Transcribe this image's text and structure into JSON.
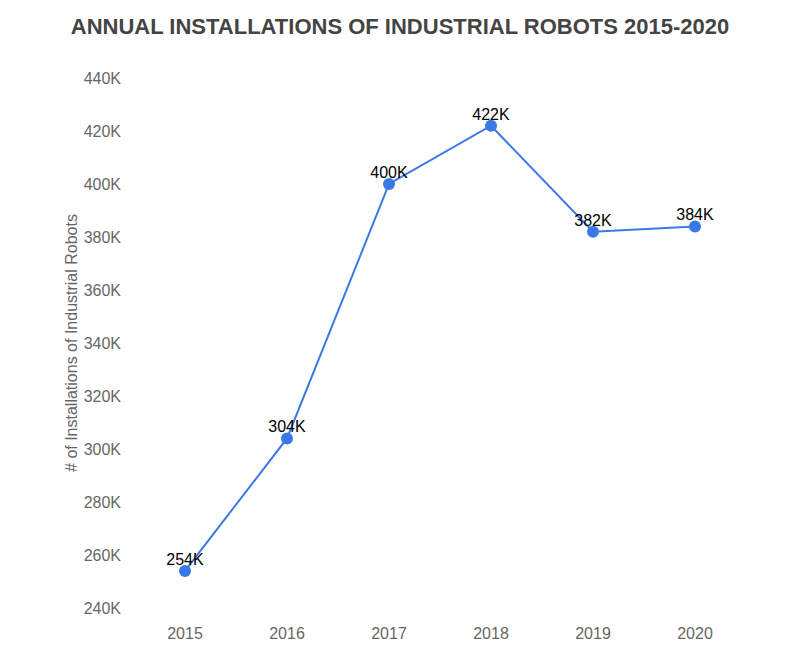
{
  "chart_data": {
    "type": "line",
    "title": "ANNUAL INSTALLATIONS OF INDUSTRIAL ROBOTS 2015-2020",
    "y_label": "# of Installations of Industrial Robots",
    "categories": [
      "2015",
      "2016",
      "2017",
      "2018",
      "2019",
      "2020"
    ],
    "values": [
      254000,
      304000,
      400000,
      422000,
      382000,
      384000
    ],
    "value_labels": [
      "254K",
      "304K",
      "400K",
      "422K",
      "382K",
      "384K"
    ],
    "color": "#3b78e7",
    "marker": "circle",
    "line_style": "solid",
    "data_labels": true,
    "grid": false,
    "ylim": [
      240000,
      440000
    ],
    "yticks": [
      {
        "value": 240000,
        "label": "240K"
      },
      {
        "value": 260000,
        "label": "260K"
      },
      {
        "value": 280000,
        "label": "280K"
      },
      {
        "value": 300000,
        "label": "300K"
      },
      {
        "value": 320000,
        "label": "320K"
      },
      {
        "value": 340000,
        "label": "340K"
      },
      {
        "value": 360000,
        "label": "360K"
      },
      {
        "value": 380000,
        "label": "380K"
      },
      {
        "value": 400000,
        "label": "400K"
      },
      {
        "value": 420000,
        "label": "420K"
      },
      {
        "value": 440000,
        "label": "440K"
      }
    ]
  }
}
